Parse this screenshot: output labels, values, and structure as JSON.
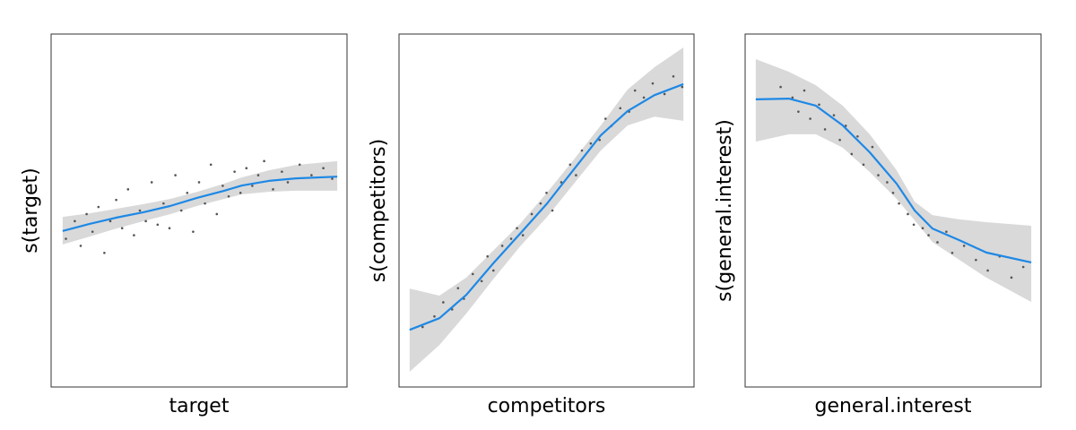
{
  "chart_data": [
    {
      "type": "line",
      "x_label": "target",
      "y_label": "s(target)",
      "xlim": [
        0,
        100
      ],
      "ylim": [
        0,
        100
      ],
      "color": "#1e88e5",
      "band_color": "#d9d9d9",
      "point_color": "#555555",
      "x": [
        3.9,
        13,
        22.1,
        31.2,
        40.3,
        49.4,
        58.5,
        64.5,
        73.6,
        82.7,
        96.7
      ],
      "values": [
        44.2,
        46.2,
        48,
        49.5,
        51.3,
        53.6,
        55.6,
        57.1,
        58.4,
        59.1,
        59.6
      ],
      "upper": [
        48.2,
        49.2,
        50.5,
        51.8,
        53.3,
        55.3,
        57.6,
        59.4,
        61.4,
        62.9,
        64
      ],
      "lower": [
        40.4,
        42.6,
        44.9,
        47,
        49,
        51.3,
        53.3,
        54.6,
        55.3,
        55.6,
        55.6
      ],
      "points": {
        "x": [
          5,
          8,
          10,
          12,
          14,
          16,
          18,
          20,
          22,
          24,
          26,
          28,
          30,
          32,
          34,
          36,
          38,
          40,
          42,
          44,
          46,
          48,
          50,
          52,
          54,
          56,
          58,
          60,
          62,
          64,
          66,
          68,
          70,
          72,
          75,
          78,
          80,
          84,
          88,
          92,
          95
        ],
        "y": [
          42,
          47,
          40,
          49,
          44,
          51,
          38,
          47,
          53,
          45,
          56,
          43,
          50,
          47,
          58,
          46,
          52,
          45,
          60,
          50,
          55,
          44,
          58,
          52,
          63,
          49,
          57,
          54,
          61,
          55,
          62,
          57,
          60,
          64,
          56,
          61,
          58,
          63,
          60,
          62,
          59
        ]
      }
    },
    {
      "type": "line",
      "x_label": "competitors",
      "y_label": "s(competitors)",
      "xlim": [
        0,
        100
      ],
      "ylim": [
        0,
        100
      ],
      "color": "#1e88e5",
      "band_color": "#d9d9d9",
      "point_color": "#555555",
      "x": [
        3.6,
        13.7,
        22.8,
        31.9,
        41,
        50.2,
        59.3,
        68.4,
        77.5,
        86.6,
        96.4
      ],
      "values": [
        16.2,
        19.5,
        26.1,
        35,
        43.4,
        52,
        61.7,
        71.3,
        78.2,
        82.7,
        85.8
      ],
      "upper": [
        27.9,
        25.9,
        31,
        38.6,
        46.2,
        55.1,
        64.5,
        74.1,
        84.3,
        90.6,
        96.2
      ],
      "lower": [
        4.3,
        11.9,
        20.8,
        30.5,
        39.8,
        48.2,
        57.6,
        67,
        74.1,
        76.6,
        75.4
      ],
      "points": {
        "x": [
          8,
          12,
          15,
          18,
          20,
          22,
          25,
          28,
          30,
          32,
          35,
          38,
          40,
          42,
          45,
          48,
          50,
          52,
          55,
          58,
          60,
          62,
          65,
          68,
          70,
          72,
          75,
          78,
          80,
          83,
          86,
          90,
          93,
          96
        ],
        "y": [
          17,
          20,
          24,
          22,
          28,
          25,
          32,
          30,
          37,
          33,
          40,
          42,
          45,
          43,
          49,
          52,
          55,
          50,
          58,
          63,
          60,
          67,
          69,
          70,
          76,
          74,
          79,
          78,
          84,
          82,
          86,
          83,
          88,
          85
        ]
      }
    },
    {
      "type": "line",
      "x_label": "general.interest",
      "y_label": "s(general.interest)",
      "xlim": [
        0,
        100
      ],
      "ylim": [
        0,
        100
      ],
      "color": "#1e88e5",
      "band_color": "#d9d9d9",
      "point_color": "#555555",
      "x": [
        3.6,
        14.8,
        23.9,
        33,
        42.1,
        51.2,
        57.3,
        63.3,
        72.4,
        81.5,
        96.7
      ],
      "values": [
        81.5,
        81.7,
        79.7,
        74.1,
        66.5,
        57.6,
        50,
        44.9,
        41.6,
        38.1,
        35.3
      ],
      "upper": [
        92.9,
        89.3,
        85.5,
        79.7,
        71.6,
        61.4,
        52.5,
        48.7,
        47.5,
        46.7,
        45.7
      ],
      "lower": [
        69.5,
        71.6,
        71.6,
        67.8,
        60.9,
        53.3,
        47.2,
        41.1,
        36,
        31,
        24.1
      ],
      "points": {
        "x": [
          12,
          16,
          18,
          20,
          22,
          25,
          27,
          30,
          32,
          34,
          36,
          38,
          40,
          43,
          45,
          48,
          50,
          52,
          55,
          57,
          60,
          62,
          65,
          68,
          70,
          74,
          78,
          82,
          86,
          90,
          94
        ],
        "y": [
          85,
          82,
          78,
          84,
          76,
          80,
          73,
          77,
          70,
          74,
          66,
          71,
          63,
          68,
          60,
          58,
          55,
          52,
          49,
          46,
          45,
          43,
          41,
          44,
          38,
          40,
          36,
          33,
          37,
          31,
          34
        ]
      }
    }
  ]
}
